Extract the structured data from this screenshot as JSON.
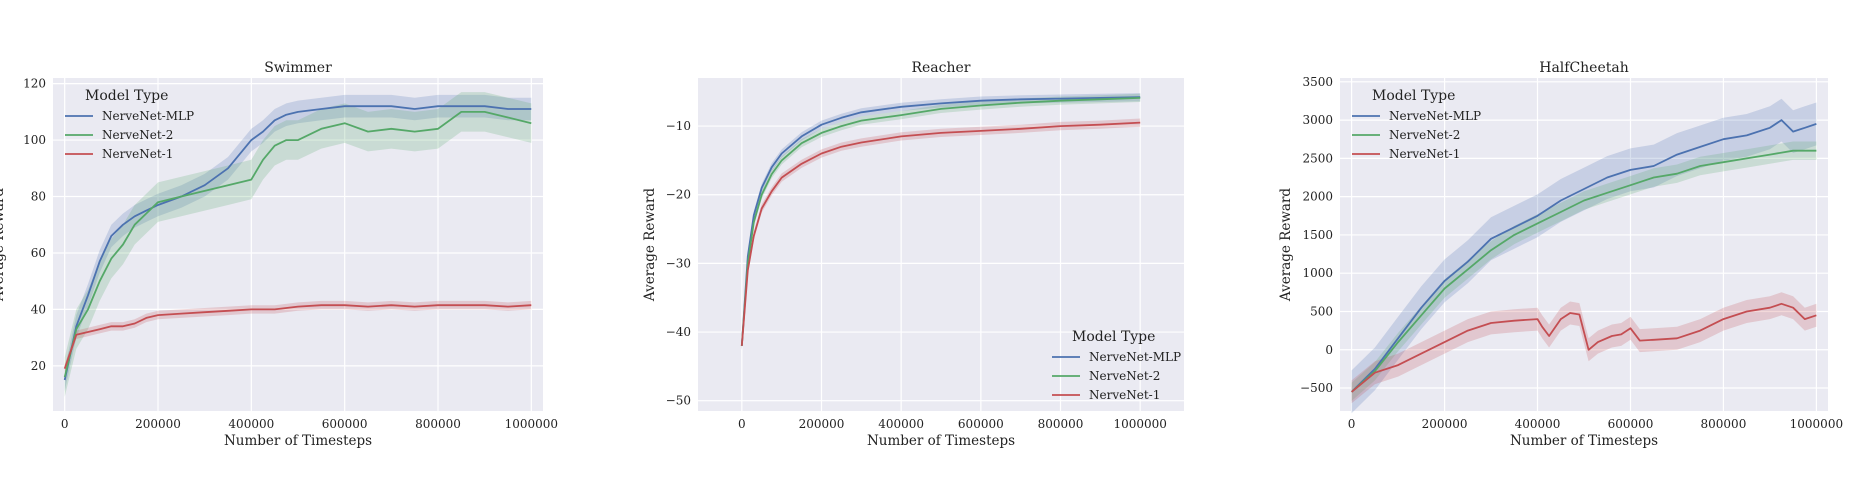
{
  "colors": {
    "background": "#EAEAF2",
    "grid": "#FFFFFF",
    "NerveNet-MLP": "#4C72B0",
    "NerveNet-2": "#55A868",
    "NerveNet-1": "#C44E52"
  },
  "chart_data": [
    {
      "type": "line",
      "title": "Swimmer",
      "xlabel": "Number of Timesteps",
      "ylabel": "Average Reward",
      "xlim": [
        -25000,
        1025000
      ],
      "ylim": [
        4,
        122
      ],
      "xticks": [
        0,
        200000,
        400000,
        600000,
        800000,
        1000000
      ],
      "yticks": [
        20,
        40,
        60,
        80,
        100,
        120
      ],
      "grid": true,
      "legend": {
        "title": "Model Type",
        "placement": "upper-left"
      },
      "series": [
        {
          "name": "NerveNet-MLP",
          "band": 4,
          "x": [
            0,
            25000,
            50000,
            75000,
            100000,
            125000,
            150000,
            175000,
            200000,
            250000,
            300000,
            350000,
            400000,
            425000,
            450000,
            475000,
            500000,
            550000,
            600000,
            650000,
            700000,
            750000,
            800000,
            850000,
            900000,
            950000,
            1000000
          ],
          "y": [
            15,
            34,
            45,
            57,
            66,
            70,
            73,
            75,
            77,
            80,
            84,
            90,
            100,
            103,
            107,
            109,
            110,
            111,
            112,
            112,
            112,
            111,
            112,
            112,
            112,
            111,
            111
          ]
        },
        {
          "name": "NerveNet-2",
          "band": 7,
          "x": [
            0,
            25000,
            50000,
            75000,
            100000,
            125000,
            150000,
            175000,
            200000,
            250000,
            300000,
            350000,
            400000,
            425000,
            450000,
            475000,
            500000,
            550000,
            600000,
            650000,
            700000,
            750000,
            800000,
            850000,
            900000,
            950000,
            1000000
          ],
          "y": [
            16,
            33,
            40,
            50,
            58,
            63,
            70,
            74,
            78,
            80,
            82,
            84,
            86,
            93,
            98,
            100,
            100,
            104,
            106,
            103,
            104,
            103,
            104,
            110,
            110,
            108,
            106
          ]
        },
        {
          "name": "NerveNet-1",
          "band": 1.5,
          "x": [
            0,
            25000,
            50000,
            75000,
            100000,
            125000,
            150000,
            175000,
            200000,
            250000,
            300000,
            350000,
            400000,
            450000,
            500000,
            550000,
            600000,
            650000,
            700000,
            750000,
            800000,
            850000,
            900000,
            950000,
            1000000
          ],
          "y": [
            19,
            31,
            32,
            33,
            34,
            34,
            35,
            37,
            38,
            38.5,
            39,
            39.5,
            40,
            40,
            41,
            41.5,
            41.5,
            41,
            41.5,
            41,
            41.5,
            41.5,
            41.5,
            41,
            41.5
          ]
        }
      ]
    },
    {
      "type": "line",
      "title": "Reacher",
      "xlabel": "Number of Timesteps",
      "ylabel": "Average Reward",
      "xlim": [
        -110000,
        1110000
      ],
      "ylim": [
        -51.5,
        -3
      ],
      "xticks": [
        0,
        200000,
        400000,
        600000,
        800000,
        1000000
      ],
      "yticks": [
        -10,
        -20,
        -30,
        -40,
        -50
      ],
      "grid": true,
      "legend": {
        "title": "Model Type",
        "placement": "lower-right"
      },
      "series": [
        {
          "name": "NerveNet-MLP",
          "band": 0.6,
          "x": [
            0,
            15000,
            30000,
            50000,
            75000,
            100000,
            150000,
            200000,
            250000,
            300000,
            400000,
            500000,
            600000,
            700000,
            800000,
            900000,
            1000000
          ],
          "y": [
            -42,
            -29,
            -23,
            -19,
            -16,
            -14,
            -11.5,
            -9.8,
            -8.8,
            -8,
            -7.2,
            -6.7,
            -6.3,
            -6.1,
            -6,
            -5.9,
            -5.8
          ]
        },
        {
          "name": "NerveNet-2",
          "band": 0.6,
          "x": [
            0,
            15000,
            30000,
            50000,
            75000,
            100000,
            150000,
            200000,
            250000,
            300000,
            400000,
            500000,
            600000,
            700000,
            800000,
            900000,
            1000000
          ],
          "y": [
            -42,
            -30,
            -24,
            -20,
            -17,
            -15,
            -12.5,
            -11,
            -10,
            -9.2,
            -8.4,
            -7.5,
            -7,
            -6.6,
            -6.3,
            -6.1,
            -5.9
          ]
        },
        {
          "name": "NerveNet-1",
          "band": 0.6,
          "x": [
            0,
            15000,
            30000,
            50000,
            75000,
            100000,
            150000,
            200000,
            250000,
            300000,
            400000,
            500000,
            600000,
            700000,
            800000,
            900000,
            1000000
          ],
          "y": [
            -42,
            -31,
            -26,
            -22,
            -19.5,
            -17.5,
            -15.5,
            -14,
            -13,
            -12.4,
            -11.5,
            -11,
            -10.7,
            -10.4,
            -10,
            -9.8,
            -9.5
          ]
        }
      ]
    },
    {
      "type": "line",
      "title": "HalfCheetah",
      "xlabel": "Number of Timesteps",
      "ylabel": "Average Reward",
      "xlim": [
        -25000,
        1025000
      ],
      "ylim": [
        -800,
        3550
      ],
      "xticks": [
        0,
        200000,
        400000,
        600000,
        800000,
        1000000
      ],
      "yticks": [
        -500,
        0,
        500,
        1000,
        1500,
        2000,
        2500,
        3000,
        3500
      ],
      "grid": true,
      "legend": {
        "title": "Model Type",
        "placement": "upper-left"
      },
      "series": [
        {
          "name": "NerveNet-MLP",
          "band": 280,
          "x": [
            0,
            50000,
            100000,
            150000,
            200000,
            250000,
            300000,
            350000,
            400000,
            450000,
            500000,
            550000,
            600000,
            650000,
            700000,
            750000,
            800000,
            850000,
            900000,
            925000,
            950000,
            975000,
            1000000
          ],
          "y": [
            -550,
            -250,
            150,
            550,
            900,
            1150,
            1450,
            1600,
            1750,
            1950,
            2100,
            2250,
            2350,
            2400,
            2550,
            2650,
            2750,
            2800,
            2900,
            3000,
            2850,
            2900,
            2950
          ]
        },
        {
          "name": "NerveNet-2",
          "band": 120,
          "x": [
            0,
            50000,
            100000,
            150000,
            200000,
            250000,
            300000,
            350000,
            400000,
            450000,
            500000,
            550000,
            600000,
            650000,
            700000,
            750000,
            800000,
            850000,
            900000,
            950000,
            1000000
          ],
          "y": [
            -550,
            -280,
            100,
            450,
            800,
            1050,
            1300,
            1500,
            1650,
            1800,
            1950,
            2050,
            2150,
            2250,
            2300,
            2400,
            2450,
            2500,
            2550,
            2600,
            2600
          ]
        },
        {
          "name": "NerveNet-1",
          "band": 150,
          "x": [
            0,
            50000,
            100000,
            150000,
            200000,
            250000,
            300000,
            350000,
            400000,
            410000,
            425000,
            450000,
            470000,
            490000,
            510000,
            530000,
            560000,
            580000,
            600000,
            620000,
            650000,
            700000,
            750000,
            800000,
            850000,
            900000,
            925000,
            950000,
            975000,
            1000000
          ],
          "y": [
            -550,
            -300,
            -200,
            -50,
            100,
            250,
            350,
            380,
            400,
            300,
            180,
            400,
            480,
            460,
            0,
            100,
            180,
            200,
            280,
            120,
            130,
            150,
            250,
            400,
            500,
            550,
            600,
            550,
            400,
            450
          ]
        }
      ]
    }
  ]
}
